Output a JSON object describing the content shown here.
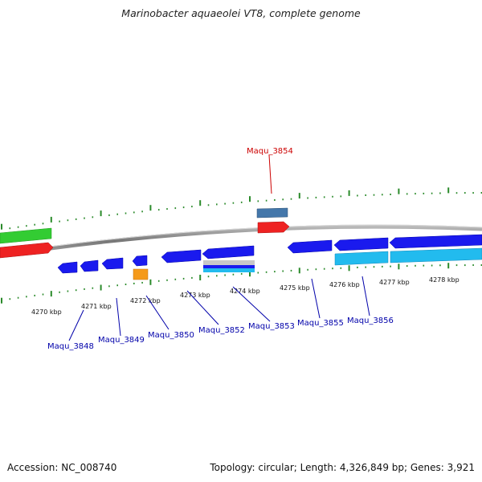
{
  "title": "Marinobacter aquaeolei VT8, complete genome",
  "footer": {
    "accession": "Accession: NC_008740",
    "summary": "Topology: circular; Length: 4,326,849 bp; Genes: 3,921"
  },
  "colors": {
    "backbone": "#888888",
    "tick": "#2a8a2a",
    "cds": "#1a1aee",
    "cds_highlight_top": "#f22222",
    "upper_top": "#4477aa",
    "green_track": "#33cc33",
    "red_track": "#ee2222",
    "cyan_track": "#22bbee",
    "orange": "#f59a1a",
    "label_blue": "#0000aa",
    "label_red": "#cc0000"
  },
  "ruler": {
    "labels": [
      "4270 kbp",
      "4271 kbp",
      "4272 kbp",
      "4273 kbp",
      "4274 kbp",
      "4275 kbp",
      "4276 kbp",
      "4277 kbp",
      "4278 kbp"
    ]
  },
  "gene_labels": [
    {
      "id": "maqu-3848",
      "text": "Maqu_3848",
      "color": "blue"
    },
    {
      "id": "maqu-3849",
      "text": "Maqu_3849",
      "color": "blue"
    },
    {
      "id": "maqu-3850",
      "text": "Maqu_3850",
      "color": "blue"
    },
    {
      "id": "maqu-3852",
      "text": "Maqu_3852",
      "color": "blue"
    },
    {
      "id": "maqu-3853",
      "text": "Maqu_3853",
      "color": "blue"
    },
    {
      "id": "maqu-3855",
      "text": "Maqu_3855",
      "color": "blue"
    },
    {
      "id": "maqu-3856",
      "text": "Maqu_3856",
      "color": "blue"
    },
    {
      "id": "maqu-3854",
      "text": "Maqu_3854",
      "color": "red"
    }
  ]
}
